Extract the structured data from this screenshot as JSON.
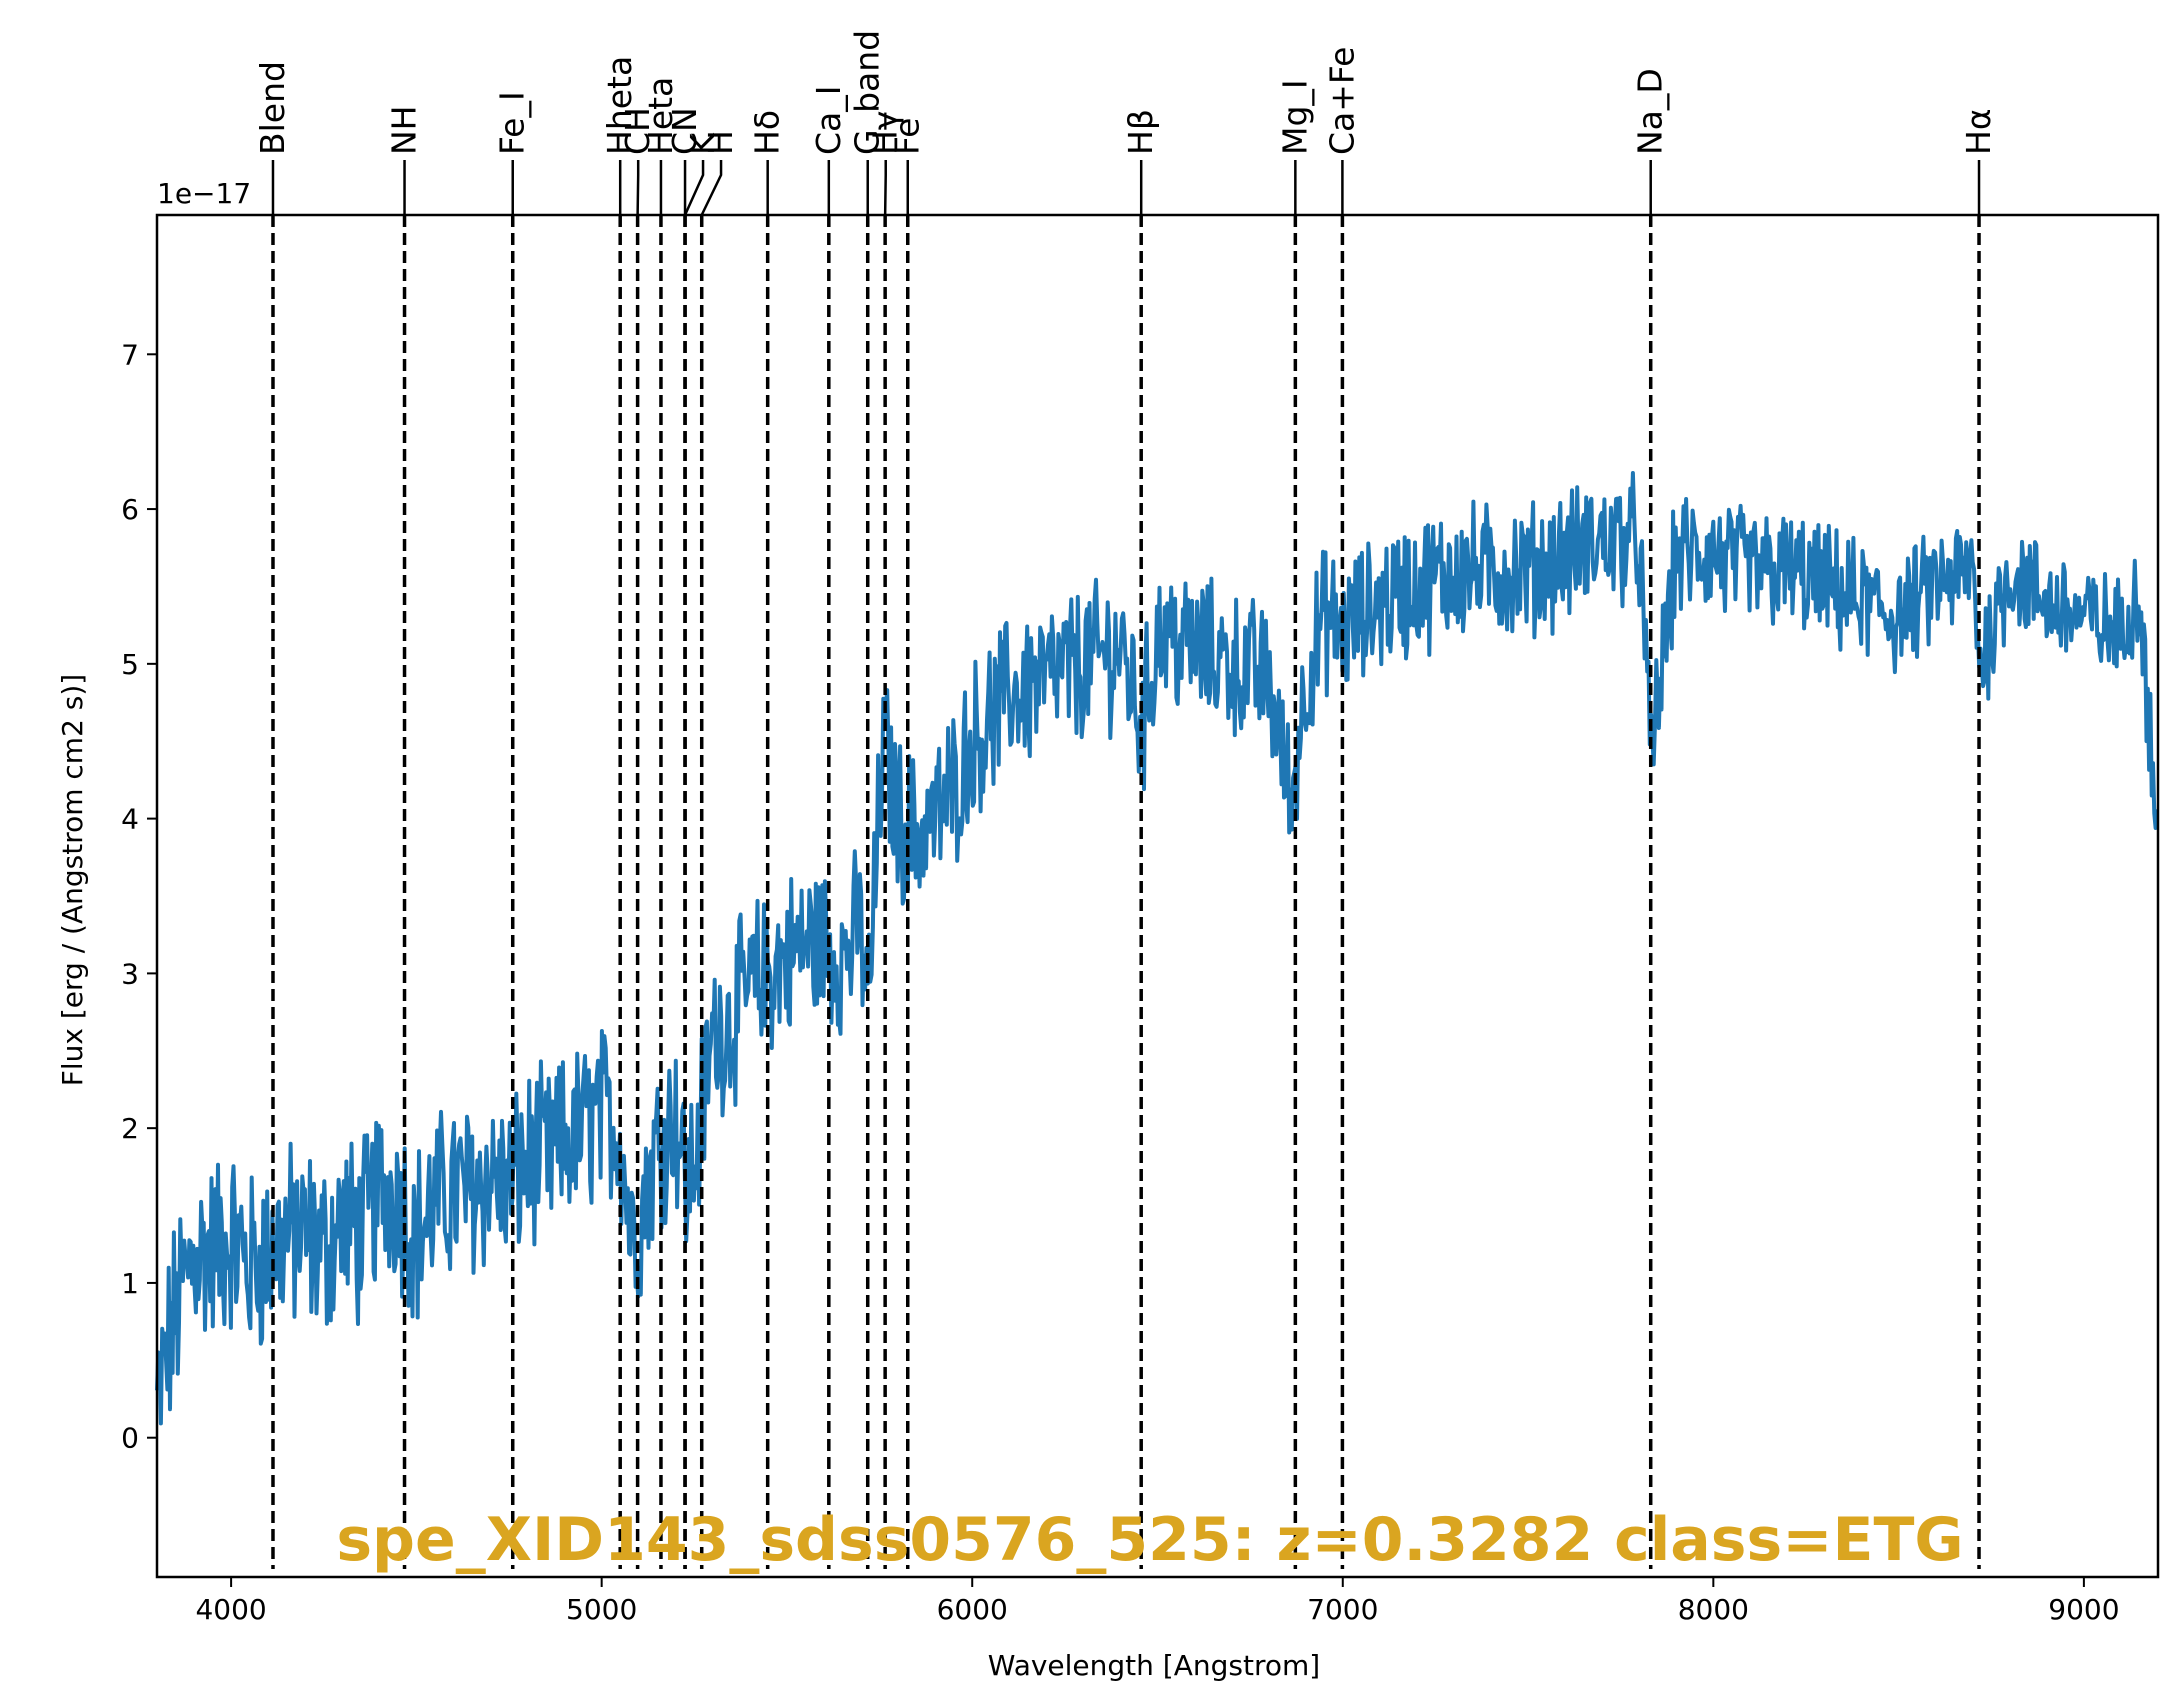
{
  "chart_data": {
    "type": "line",
    "xlabel": "Wavelength [Angstrom]",
    "ylabel": "Flux [erg / (Angstrom cm2 s)]",
    "y_offset_text": "1e−17",
    "xlim": [
      3800,
      9200
    ],
    "ylim": [
      -0.9,
      7.9
    ],
    "x_ticks": [
      4000,
      5000,
      6000,
      7000,
      8000,
      9000
    ],
    "x_tick_labels": [
      "4000",
      "5000",
      "6000",
      "7000",
      "8000",
      "9000"
    ],
    "y_ticks": [
      0,
      1,
      2,
      3,
      4,
      5,
      6,
      7
    ],
    "y_tick_labels": [
      "0",
      "1",
      "2",
      "3",
      "4",
      "5",
      "6",
      "7"
    ],
    "grid": false,
    "series_color": "#1f77b4",
    "annotation": "spe_XID143_sdss0576_525: z=0.3282 class=ETG",
    "annotation_color": "#DAA520",
    "spectrum": {
      "x": [
        3800,
        3850,
        3900,
        3950,
        4000,
        4050,
        4100,
        4150,
        4200,
        4250,
        4300,
        4350,
        4400,
        4450,
        4500,
        4550,
        4600,
        4650,
        4700,
        4750,
        4800,
        4850,
        4900,
        4950,
        5000,
        5050,
        5080,
        5100,
        5150,
        5200,
        5230,
        5260,
        5300,
        5350,
        5400,
        5450,
        5500,
        5550,
        5600,
        5650,
        5700,
        5720,
        5760,
        5800,
        5850,
        5900,
        5950,
        6000,
        6100,
        6200,
        6300,
        6400,
        6460,
        6500,
        6600,
        6700,
        6800,
        6860,
        6900,
        6950,
        7000,
        7100,
        7200,
        7300,
        7400,
        7500,
        7600,
        7700,
        7800,
        7830,
        7900,
        8000,
        8100,
        8200,
        8300,
        8400,
        8500,
        8600,
        8700,
        8720,
        8800,
        8900,
        9000,
        9100,
        9150,
        9200
      ],
      "y": [
        0.2,
        0.8,
        1.2,
        1.2,
        1.3,
        1.1,
        1.2,
        1.3,
        1.3,
        1.2,
        1.4,
        1.3,
        1.6,
        1.6,
        1.3,
        1.5,
        1.6,
        1.6,
        1.7,
        1.6,
        1.8,
        1.8,
        1.9,
        2.0,
        2.1,
        2.0,
        1.3,
        1.4,
        1.9,
        2.1,
        1.6,
        1.9,
        2.6,
        2.7,
        2.9,
        3.0,
        3.1,
        3.2,
        3.2,
        3.1,
        3.3,
        2.8,
        4.5,
        4.0,
        3.9,
        4.0,
        4.2,
        4.5,
        4.8,
        4.9,
        5.0,
        5.1,
        4.6,
        5.2,
        5.1,
        5.0,
        4.9,
        4.1,
        4.9,
        5.3,
        5.2,
        5.4,
        5.5,
        5.6,
        5.6,
        5.6,
        5.7,
        5.8,
        5.8,
        4.4,
        5.7,
        5.7,
        5.6,
        5.6,
        5.5,
        5.4,
        5.3,
        5.5,
        5.6,
        5.0,
        5.6,
        5.4,
        5.3,
        5.2,
        5.5,
        3.8
      ]
    },
    "lines": [
      {
        "label": "Blend",
        "x": 4113
      },
      {
        "label": "NH",
        "x": 4468
      },
      {
        "label": "Fe_I",
        "x": 4760
      },
      {
        "label": "Hheta",
        "x": 5050
      },
      {
        "label": "CH",
        "x": 5097
      },
      {
        "label": "Heta",
        "x": 5160
      },
      {
        "label": "CN",
        "x": 5225
      },
      {
        "label": "K",
        "x": 5225
      },
      {
        "label": "H",
        "x": 5270
      },
      {
        "label": "Hδ",
        "x": 5448
      },
      {
        "label": "Ca_I",
        "x": 5613
      },
      {
        "label": "G_band",
        "x": 5718
      },
      {
        "label": "Hγ",
        "x": 5765
      },
      {
        "label": "Fe",
        "x": 5826
      },
      {
        "label": "Hβ",
        "x": 6456
      },
      {
        "label": "Mg_I",
        "x": 6872
      },
      {
        "label": "Ca+Fe",
        "x": 6999
      },
      {
        "label": "Na_D",
        "x": 7831
      },
      {
        "label": "Hα",
        "x": 8717
      }
    ]
  }
}
